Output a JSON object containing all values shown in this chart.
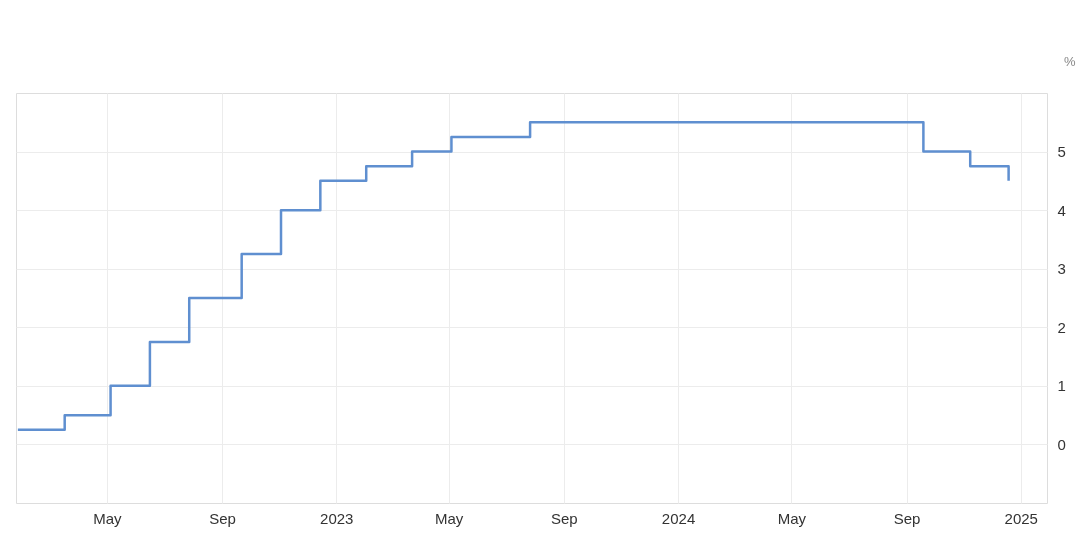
{
  "chart_data": {
    "type": "step",
    "ylabel": "%",
    "x": [
      "2022-01-26",
      "2022-03-17",
      "2022-05-05",
      "2022-06-16",
      "2022-07-28",
      "2022-09-22",
      "2022-11-03",
      "2022-12-15",
      "2023-02-02",
      "2023-03-23",
      "2023-05-04",
      "2023-07-27",
      "2024-09-19",
      "2024-11-08",
      "2024-12-19"
    ],
    "series": [
      {
        "color": "#5f8fd0",
        "values": [
          0.25,
          0.5,
          1,
          1.75,
          2.5,
          3.25,
          4,
          4.5,
          4.75,
          5,
          5.25,
          5.5,
          5,
          4.75,
          4.5
        ]
      }
    ],
    "xlim": [
      "2022-01-24",
      "2025-01-29"
    ],
    "xticks": [
      {
        "value": "2022-05-01",
        "label": "May"
      },
      {
        "value": "2022-09-01",
        "label": "Sep"
      },
      {
        "value": "2023-01-01",
        "label": "2023"
      },
      {
        "value": "2023-05-01",
        "label": "May"
      },
      {
        "value": "2023-09-01",
        "label": "Sep"
      },
      {
        "value": "2024-01-01",
        "label": "2024"
      },
      {
        "value": "2024-05-01",
        "label": "May"
      },
      {
        "value": "2024-09-01",
        "label": "Sep"
      },
      {
        "value": "2025-01-01",
        "label": "2025"
      }
    ],
    "ylim": [
      -1,
      6
    ],
    "yticks": [
      0,
      1,
      2,
      3,
      4,
      5
    ],
    "grid": true,
    "line_style": "solid",
    "marker": "none"
  }
}
